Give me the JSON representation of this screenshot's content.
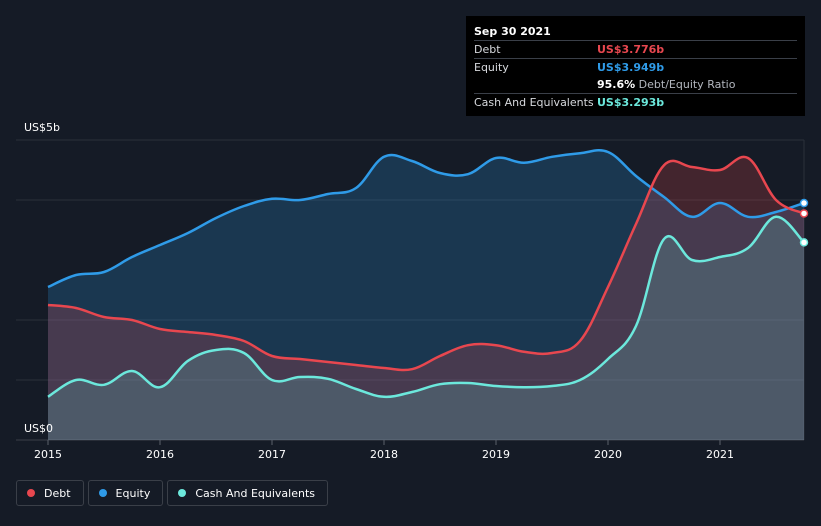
{
  "tooltip": {
    "date": "Sep 30 2021",
    "rows": [
      {
        "label": "Debt",
        "value": "US$3.776b",
        "color": "#e8474f"
      },
      {
        "label": "Equity",
        "value": "US$3.949b",
        "color": "#2f9be8"
      },
      {
        "label": "",
        "value": "95.6%",
        "sub": "Debt/Equity Ratio",
        "color": "#ffffff"
      },
      {
        "label": "Cash And Equivalents",
        "value": "US$3.293b",
        "color": "#6ce8dc"
      }
    ]
  },
  "legend": [
    {
      "label": "Debt",
      "color": "#e8474f"
    },
    {
      "label": "Equity",
      "color": "#2f9be8"
    },
    {
      "label": "Cash And Equivalents",
      "color": "#6ce8dc"
    }
  ],
  "chart_data": {
    "type": "area",
    "y_top_label": "US$5b",
    "y_bottom_label": "US$0",
    "ylim": [
      0,
      5
    ],
    "xlim": [
      2015.0,
      2021.75
    ],
    "x_ticks": [
      "2015",
      "2016",
      "2017",
      "2018",
      "2019",
      "2020",
      "2021"
    ],
    "grid": true,
    "colors": {
      "debt": "#e8474f",
      "equity": "#2f9be8",
      "cash": "#6ce8dc"
    },
    "series": [
      {
        "key": "equity",
        "name": "Equity",
        "x": [
          2015.0,
          2015.25,
          2015.5,
          2015.75,
          2016.0,
          2016.25,
          2016.5,
          2016.75,
          2017.0,
          2017.25,
          2017.5,
          2017.75,
          2018.0,
          2018.25,
          2018.5,
          2018.75,
          2019.0,
          2019.25,
          2019.5,
          2019.75,
          2020.0,
          2020.25,
          2020.5,
          2020.75,
          2021.0,
          2021.25,
          2021.5,
          2021.75
        ],
        "values": [
          2.55,
          2.75,
          2.8,
          3.05,
          3.25,
          3.45,
          3.7,
          3.9,
          4.02,
          4.0,
          4.1,
          4.2,
          4.72,
          4.65,
          4.45,
          4.43,
          4.7,
          4.62,
          4.72,
          4.78,
          4.8,
          4.4,
          4.05,
          3.72,
          3.95,
          3.72,
          3.8,
          3.949
        ]
      },
      {
        "key": "debt",
        "name": "Debt",
        "x": [
          2015.0,
          2015.25,
          2015.5,
          2015.75,
          2016.0,
          2016.25,
          2016.5,
          2016.75,
          2017.0,
          2017.25,
          2017.5,
          2017.75,
          2018.0,
          2018.25,
          2018.5,
          2018.75,
          2019.0,
          2019.25,
          2019.5,
          2019.75,
          2020.0,
          2020.25,
          2020.5,
          2020.75,
          2021.0,
          2021.25,
          2021.5,
          2021.75
        ],
        "values": [
          2.25,
          2.2,
          2.05,
          2.0,
          1.85,
          1.8,
          1.75,
          1.65,
          1.4,
          1.35,
          1.3,
          1.25,
          1.2,
          1.18,
          1.4,
          1.58,
          1.58,
          1.47,
          1.45,
          1.65,
          2.55,
          3.6,
          4.58,
          4.55,
          4.5,
          4.7,
          4.0,
          3.776
        ]
      },
      {
        "key": "cash",
        "name": "Cash And Equivalents",
        "x": [
          2015.0,
          2015.25,
          2015.5,
          2015.75,
          2016.0,
          2016.25,
          2016.5,
          2016.75,
          2017.0,
          2017.25,
          2017.5,
          2017.75,
          2018.0,
          2018.25,
          2018.5,
          2018.75,
          2019.0,
          2019.25,
          2019.5,
          2019.75,
          2020.0,
          2020.25,
          2020.5,
          2020.75,
          2021.0,
          2021.25,
          2021.5,
          2021.75
        ],
        "values": [
          0.72,
          1.0,
          0.92,
          1.15,
          0.88,
          1.32,
          1.5,
          1.45,
          1.0,
          1.05,
          1.02,
          0.85,
          0.72,
          0.8,
          0.93,
          0.95,
          0.9,
          0.88,
          0.9,
          1.0,
          1.35,
          1.9,
          3.35,
          3.0,
          3.05,
          3.2,
          3.72,
          3.293
        ]
      }
    ]
  }
}
